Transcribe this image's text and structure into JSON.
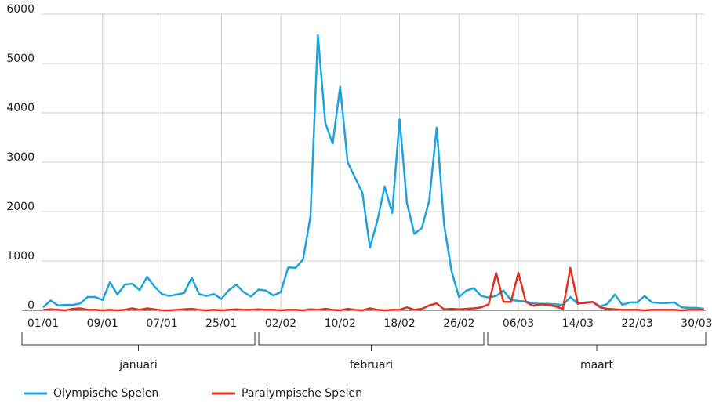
{
  "chart_data": {
    "type": "line",
    "categories": [
      "01/01",
      null,
      null,
      null,
      null,
      null,
      null,
      null,
      "09/01",
      null,
      null,
      null,
      null,
      null,
      null,
      null,
      "07/01",
      null,
      null,
      null,
      null,
      null,
      null,
      null,
      "25/01",
      null,
      null,
      null,
      null,
      null,
      null,
      null,
      "02/02",
      null,
      null,
      null,
      null,
      null,
      null,
      null,
      "10/02",
      null,
      null,
      null,
      null,
      null,
      null,
      null,
      "18/02",
      null,
      null,
      null,
      null,
      null,
      null,
      null,
      "26/02",
      null,
      null,
      null,
      null,
      null,
      null,
      null,
      "06/03",
      null,
      null,
      null,
      null,
      null,
      null,
      null,
      "14/03",
      null,
      null,
      null,
      null,
      null,
      null,
      null,
      "22/03",
      null,
      null,
      null,
      null,
      null,
      null,
      null,
      "30/03",
      null
    ],
    "months": [
      "januari",
      "februari",
      "maart"
    ],
    "series": [
      {
        "name": "Olympische Spelen",
        "color": "#1ba3dd",
        "values": [
          60,
          200,
          100,
          110,
          110,
          140,
          270,
          270,
          210,
          570,
          320,
          520,
          540,
          410,
          680,
          480,
          330,
          290,
          320,
          350,
          660,
          330,
          290,
          330,
          230,
          410,
          520,
          370,
          280,
          420,
          400,
          300,
          370,
          870,
          860,
          1030,
          1900,
          5570,
          3790,
          3380,
          4530,
          3000,
          2690,
          2380,
          1270,
          1810,
          2510,
          1970,
          3870,
          2170,
          1550,
          1670,
          2220,
          3700,
          1730,
          790,
          270,
          400,
          450,
          290,
          260,
          290,
          400,
          210,
          190,
          180,
          140,
          130,
          130,
          120,
          110,
          270,
          130,
          160,
          170,
          80,
          130,
          320,
          110,
          160,
          160,
          290,
          160,
          150,
          150,
          160,
          60,
          50,
          50,
          30
        ]
      },
      {
        "name": "Paralympische Spelen",
        "color": "#e0301e",
        "values": [
          10,
          20,
          10,
          0,
          30,
          40,
          10,
          10,
          0,
          10,
          0,
          10,
          40,
          10,
          40,
          20,
          0,
          0,
          10,
          20,
          30,
          10,
          0,
          10,
          0,
          10,
          20,
          10,
          10,
          20,
          10,
          10,
          0,
          10,
          10,
          0,
          20,
          10,
          30,
          10,
          0,
          30,
          10,
          0,
          40,
          10,
          0,
          10,
          10,
          60,
          10,
          30,
          100,
          140,
          20,
          30,
          20,
          30,
          40,
          60,
          120,
          760,
          170,
          170,
          760,
          170,
          90,
          120,
          110,
          80,
          30,
          860,
          140,
          150,
          170,
          60,
          30,
          20,
          10,
          10,
          10,
          0,
          10,
          10,
          10,
          10,
          0,
          10,
          10,
          10
        ]
      }
    ],
    "ylim": [
      0,
      6000
    ],
    "yticks": [
      0,
      1000,
      2000,
      3000,
      4000,
      5000,
      6000
    ],
    "grid": true
  }
}
